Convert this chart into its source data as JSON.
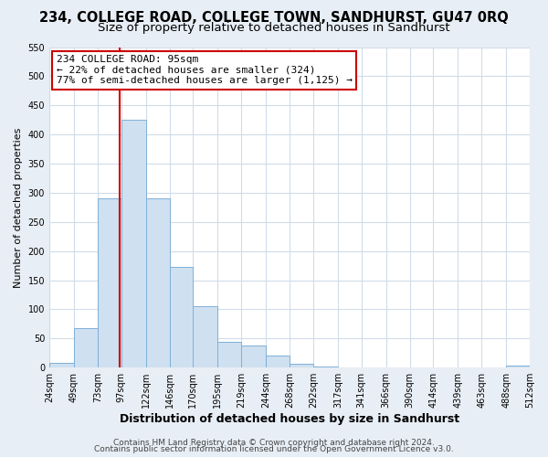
{
  "title": "234, COLLEGE ROAD, COLLEGE TOWN, SANDHURST, GU47 0RQ",
  "subtitle": "Size of property relative to detached houses in Sandhurst",
  "xlabel": "Distribution of detached houses by size in Sandhurst",
  "ylabel": "Number of detached properties",
  "bin_edges": [
    24,
    49,
    73,
    97,
    122,
    146,
    170,
    195,
    219,
    244,
    268,
    292,
    317,
    341,
    366,
    390,
    414,
    439,
    463,
    488,
    512
  ],
  "bin_labels": [
    "24sqm",
    "49sqm",
    "73sqm",
    "97sqm",
    "122sqm",
    "146sqm",
    "170sqm",
    "195sqm",
    "219sqm",
    "244sqm",
    "268sqm",
    "292sqm",
    "317sqm",
    "341sqm",
    "366sqm",
    "390sqm",
    "414sqm",
    "439sqm",
    "463sqm",
    "488sqm",
    "512sqm"
  ],
  "counts": [
    8,
    68,
    290,
    425,
    290,
    173,
    106,
    44,
    38,
    20,
    7,
    2,
    0,
    0,
    0,
    0,
    0,
    0,
    0,
    3
  ],
  "bar_color": "#cfe0f0",
  "bar_edge_color": "#7fb0d8",
  "vline_x": 95,
  "vline_color": "#cc0000",
  "annotation_line1": "234 COLLEGE ROAD: 95sqm",
  "annotation_line2": "← 22% of detached houses are smaller (324)",
  "annotation_line3": "77% of semi-detached houses are larger (1,125) →",
  "annotation_box_facecolor": "#ffffff",
  "annotation_box_edgecolor": "#cc0000",
  "ylim": [
    0,
    550
  ],
  "yticks": [
    0,
    50,
    100,
    150,
    200,
    250,
    300,
    350,
    400,
    450,
    500,
    550
  ],
  "footer1": "Contains HM Land Registry data © Crown copyright and database right 2024.",
  "footer2": "Contains public sector information licensed under the Open Government Licence v3.0.",
  "fig_facecolor": "#e8eef5",
  "plot_facecolor": "#ffffff",
  "grid_color": "#d0dce8",
  "title_fontsize": 10.5,
  "subtitle_fontsize": 9.5,
  "xlabel_fontsize": 9,
  "ylabel_fontsize": 8,
  "tick_fontsize": 7,
  "annot_fontsize": 8,
  "footer_fontsize": 6.5
}
